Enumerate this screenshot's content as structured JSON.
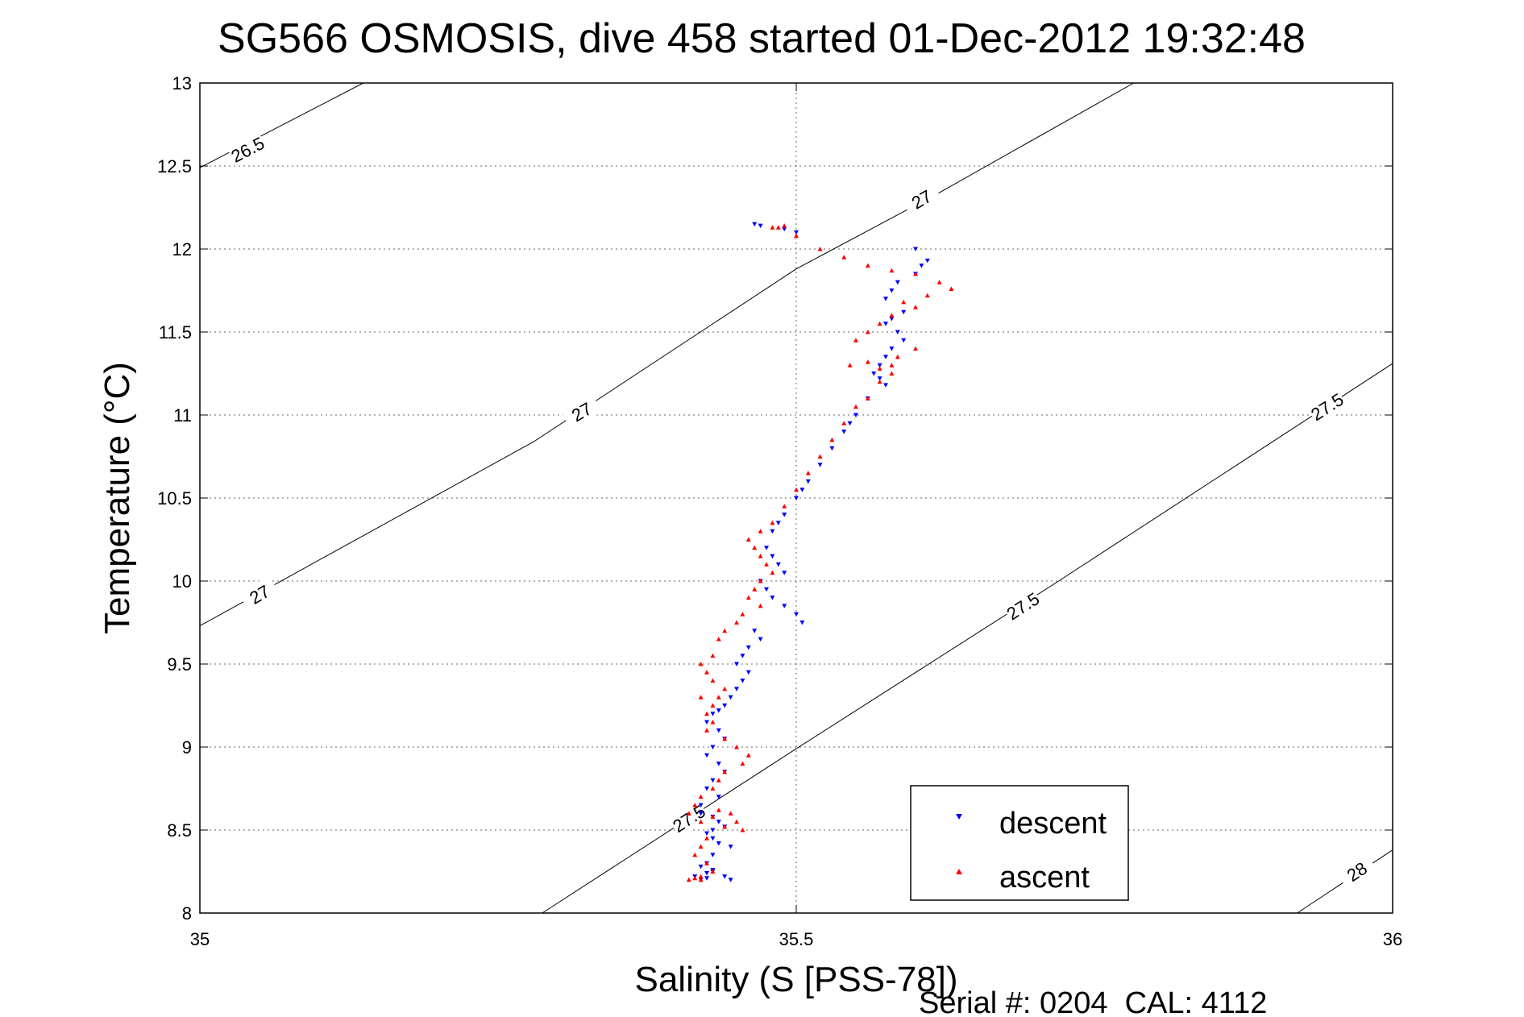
{
  "chart_data": {
    "type": "scatter",
    "title": "SG566 OSMOSIS, dive 458 started 01-Dec-2012 19:32:48",
    "xlabel": "Salinity (S [PSS-78])",
    "ylabel": "Temperature (°C)",
    "xlim": [
      35,
      36
    ],
    "ylim": [
      8,
      13
    ],
    "xticks": [
      35,
      35.5,
      36
    ],
    "yticks": [
      8,
      8.5,
      9,
      9.5,
      10,
      10.5,
      11,
      11.5,
      12,
      12.5,
      13
    ],
    "grid": true,
    "legend_position": "bottom-right",
    "footer": "Serial #: 0204  CAL: 4112",
    "isopycnals": [
      {
        "label": "26.5",
        "points": [
          [
            35.0,
            12.49
          ],
          [
            35.137,
            13.0
          ]
        ],
        "label_at": [
          35.04,
          12.6
        ]
      },
      {
        "label": "27",
        "points": [
          [
            35.0,
            9.73
          ],
          [
            35.28,
            10.84
          ],
          [
            35.5,
            11.88
          ],
          [
            35.56,
            12.11
          ],
          [
            35.62,
            12.34
          ],
          [
            35.783,
            13.0
          ]
        ],
        "label_at": [
          35.32,
          11.02
        ],
        "label2_at": [
          35.05,
          9.92
        ],
        "label3_at": [
          35.605,
          12.3
        ]
      },
      {
        "label": "27.5",
        "points": [
          [
            35.287,
            8.0
          ],
          [
            35.5,
            8.99
          ],
          [
            35.72,
            10.0
          ],
          [
            36.0,
            11.31
          ]
        ],
        "label_at": [
          35.69,
          9.85
        ],
        "label2_at": [
          35.41,
          8.57
        ],
        "label3_at": [
          35.945,
          11.05
        ]
      },
      {
        "label": "28",
        "points": [
          [
            35.92,
            8.0
          ],
          [
            36.0,
            8.38
          ]
        ],
        "label_at": [
          35.97,
          8.25
        ]
      }
    ],
    "series": [
      {
        "name": "descent",
        "marker": "triangle-down",
        "color": "#0000ff",
        "x": [
          35.465,
          35.47,
          35.49,
          35.5,
          35.6,
          35.61,
          35.605,
          35.6,
          35.585,
          35.58,
          35.575,
          35.59,
          35.58,
          35.575,
          35.585,
          35.59,
          35.58,
          35.575,
          35.57,
          35.565,
          35.57,
          35.575,
          35.56,
          35.55,
          35.545,
          35.54,
          35.53,
          35.52,
          35.51,
          35.505,
          35.5,
          35.49,
          35.485,
          35.48,
          35.475,
          35.48,
          35.485,
          35.49,
          35.47,
          35.475,
          35.48,
          35.49,
          35.5,
          35.505,
          35.465,
          35.47,
          35.46,
          35.455,
          35.45,
          35.46,
          35.455,
          35.45,
          35.445,
          35.44,
          35.435,
          35.43,
          35.425,
          35.435,
          35.44,
          35.43,
          35.425,
          35.435,
          35.44,
          35.43,
          35.425,
          35.435,
          35.42,
          35.42,
          35.43,
          35.435,
          35.44,
          35.43,
          35.425,
          35.43,
          35.435,
          35.445,
          35.43,
          35.425,
          35.43,
          35.44,
          35.445,
          35.425,
          35.42,
          35.415,
          35.425,
          35.43,
          35.42
        ],
        "y": [
          12.15,
          12.14,
          12.12,
          12.1,
          12.0,
          11.93,
          11.9,
          11.85,
          11.8,
          11.75,
          11.7,
          11.62,
          11.58,
          11.55,
          11.5,
          11.45,
          11.4,
          11.35,
          11.3,
          11.25,
          11.22,
          11.18,
          11.1,
          11.0,
          10.95,
          10.9,
          10.8,
          10.7,
          10.6,
          10.55,
          10.5,
          10.4,
          10.35,
          10.3,
          10.2,
          10.15,
          10.1,
          10.05,
          10.0,
          9.95,
          9.9,
          9.85,
          9.8,
          9.75,
          9.7,
          9.65,
          9.6,
          9.55,
          9.5,
          9.45,
          9.4,
          9.35,
          9.3,
          9.25,
          9.22,
          9.2,
          9.15,
          9.1,
          9.05,
          9.0,
          8.95,
          8.9,
          8.85,
          8.8,
          8.75,
          8.7,
          8.65,
          8.6,
          8.58,
          8.55,
          8.52,
          8.5,
          8.48,
          8.45,
          8.42,
          8.4,
          8.35,
          8.3,
          8.25,
          8.22,
          8.2,
          8.21,
          8.2,
          8.22,
          8.24,
          8.26,
          8.28
        ]
      },
      {
        "name": "ascent",
        "marker": "triangle-up",
        "color": "#ff0000",
        "x": [
          35.48,
          35.485,
          35.49,
          35.5,
          35.52,
          35.54,
          35.56,
          35.58,
          35.6,
          35.62,
          35.63,
          35.61,
          35.59,
          35.6,
          35.58,
          35.57,
          35.56,
          35.55,
          35.545,
          35.56,
          35.57,
          35.58,
          35.585,
          35.6,
          35.58,
          35.57,
          35.56,
          35.55,
          35.54,
          35.53,
          35.52,
          35.51,
          35.5,
          35.49,
          35.48,
          35.47,
          35.46,
          35.465,
          35.47,
          35.475,
          35.48,
          35.47,
          35.465,
          35.46,
          35.47,
          35.455,
          35.45,
          35.44,
          35.435,
          35.43,
          35.42,
          35.425,
          35.43,
          35.44,
          35.435,
          35.43,
          35.425,
          35.42,
          35.43,
          35.425,
          35.44,
          35.45,
          35.46,
          35.455,
          35.44,
          35.435,
          35.43,
          35.42,
          35.415,
          35.41,
          35.42,
          35.43,
          35.435,
          35.445,
          35.45,
          35.455,
          35.44,
          35.425,
          35.42,
          35.415,
          35.425,
          35.43,
          35.42,
          35.41,
          35.415,
          35.42
        ],
        "y": [
          12.13,
          12.13,
          12.14,
          12.08,
          12.0,
          11.95,
          11.9,
          11.87,
          11.85,
          11.8,
          11.76,
          11.72,
          11.68,
          11.65,
          11.6,
          11.55,
          11.5,
          11.45,
          11.3,
          11.32,
          11.28,
          11.3,
          11.35,
          11.4,
          11.25,
          11.2,
          11.1,
          11.05,
          10.95,
          10.85,
          10.75,
          10.65,
          10.55,
          10.45,
          10.35,
          10.3,
          10.25,
          10.2,
          10.15,
          10.1,
          10.05,
          10.0,
          9.95,
          9.9,
          9.85,
          9.8,
          9.75,
          9.7,
          9.65,
          9.55,
          9.5,
          9.45,
          9.4,
          9.35,
          9.3,
          9.25,
          9.2,
          9.3,
          9.15,
          9.1,
          9.05,
          9.0,
          8.95,
          8.9,
          8.85,
          8.8,
          8.75,
          8.7,
          8.65,
          8.6,
          8.55,
          8.58,
          8.62,
          8.6,
          8.55,
          8.5,
          8.52,
          8.45,
          8.4,
          8.35,
          8.3,
          8.25,
          8.22,
          8.2,
          8.21,
          8.2
        ]
      }
    ]
  }
}
